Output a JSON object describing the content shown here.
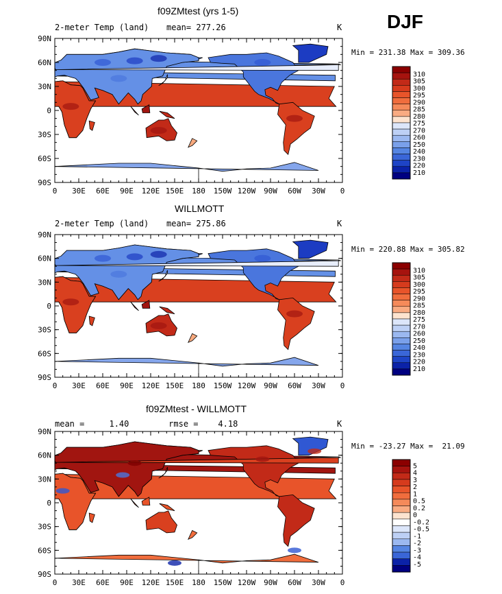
{
  "season": "DJF",
  "units": "K",
  "lat_labels": [
    "90N",
    "60N",
    "30N",
    "0",
    "30S",
    "60S",
    "90S"
  ],
  "lon_labels": [
    "0",
    "30E",
    "60E",
    "90E",
    "120E",
    "150E",
    "180",
    "150W",
    "120W",
    "90W",
    "60W",
    "30W",
    "0"
  ],
  "colors": {
    "warm": [
      "#7f0000",
      "#a11510",
      "#c22a18",
      "#d9401f",
      "#e8542a",
      "#f06d3d",
      "#f58a5a",
      "#f8a97e",
      "#fbc8a6",
      "#fde3cf"
    ],
    "cool": [
      "#e8eefc",
      "#c6d6f7",
      "#a6bff2",
      "#85a6ec",
      "#6490e6",
      "#4a76dd",
      "#3058d3",
      "#1c3cc2",
      "#0e24a8",
      "#000080"
    ],
    "ocean": "#ffffff",
    "land_outline": "#000000"
  },
  "panels": [
    {
      "title": "f09ZMtest (yrs 1-5)",
      "variable": "2-meter Temp (land)",
      "stat_text": "mean= 277.26",
      "units": "K",
      "minmax_text": "Min = 231.38 Max = 309.36",
      "colorbar": {
        "levels": [
          "310",
          "305",
          "300",
          "295",
          "290",
          "285",
          "280",
          "275",
          "270",
          "260",
          "250",
          "240",
          "230",
          "220",
          "210"
        ],
        "colors": [
          "#8b0000",
          "#a6130e",
          "#c22a18",
          "#d63b1d",
          "#e8542a",
          "#f06d3d",
          "#f58a5a",
          "#f9ab82",
          "#fde3cf",
          "#dce6fa",
          "#bdd0f5",
          "#9bb8f0",
          "#7aa0ea",
          "#5585e2",
          "#3a66d8",
          "#1e44c6",
          "#0b22a8",
          "#000080"
        ]
      }
    },
    {
      "title": "WILLMOTT",
      "variable": "2-meter Temp (land)",
      "stat_text": "mean= 275.86",
      "units": "K",
      "minmax_text": "Min = 220.88 Max = 305.82",
      "colorbar": {
        "levels": [
          "310",
          "305",
          "300",
          "295",
          "290",
          "285",
          "280",
          "275",
          "270",
          "260",
          "250",
          "240",
          "230",
          "220",
          "210"
        ],
        "colors": [
          "#8b0000",
          "#a6130e",
          "#c22a18",
          "#d63b1d",
          "#e8542a",
          "#f06d3d",
          "#f58a5a",
          "#f9ab82",
          "#fde3cf",
          "#dce6fa",
          "#bdd0f5",
          "#9bb8f0",
          "#7aa0ea",
          "#5585e2",
          "#3a66d8",
          "#1e44c6",
          "#0b22a8",
          "#000080"
        ]
      }
    },
    {
      "title": "f09ZMtest - WILLMOTT",
      "variable": "",
      "stat_text": "mean =     1.40        rmse =    4.18",
      "units": "K",
      "minmax_text": "Min = -23.27 Max =  21.09",
      "colorbar": {
        "levels": [
          "5",
          "4",
          "3",
          "2",
          "1",
          "0.5",
          "0.2",
          "0",
          "-0.2",
          "-0.5",
          "-1",
          "-2",
          "-3",
          "-4",
          "-5"
        ],
        "colors": [
          "#8b0000",
          "#a6130e",
          "#c22a18",
          "#d63b1d",
          "#e8542a",
          "#f06d3d",
          "#f58a5a",
          "#f9ab82",
          "#fde3cf",
          "#ffffff",
          "#dce6fa",
          "#bdd0f5",
          "#9bb8f0",
          "#5585e2",
          "#3a66d8",
          "#0b22a8",
          "#000080"
        ]
      }
    }
  ]
}
